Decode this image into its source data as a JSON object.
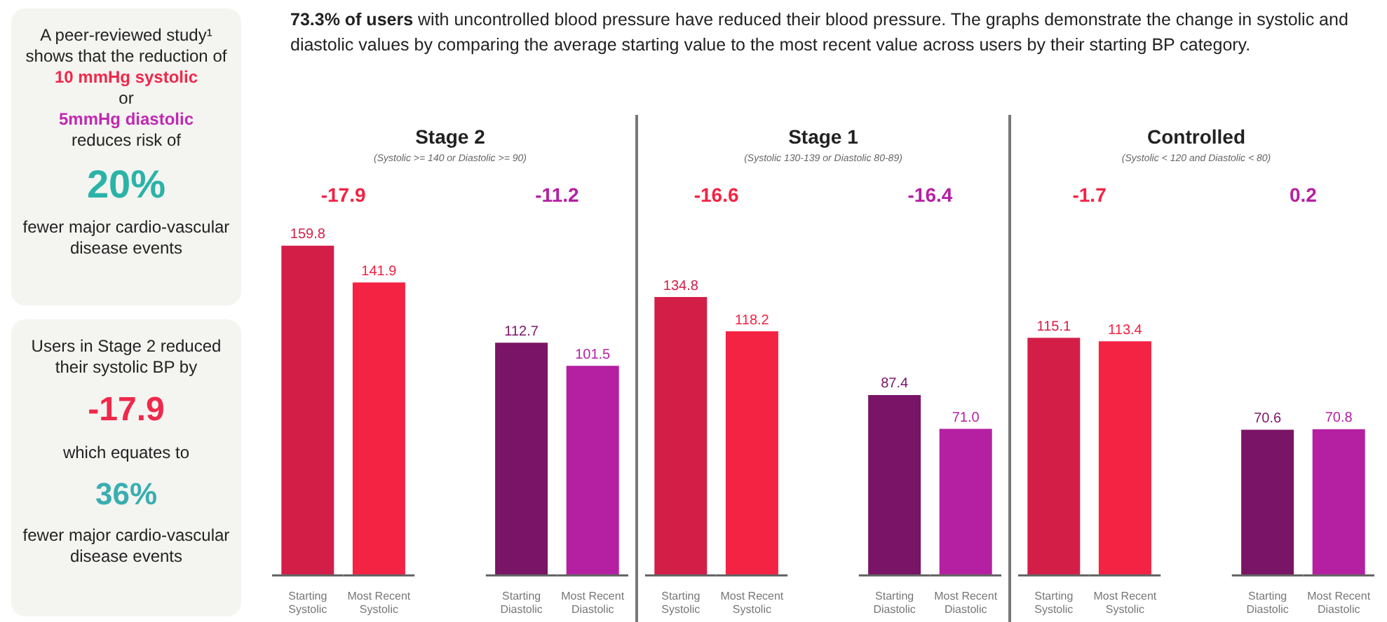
{
  "chart_data": [
    {
      "type": "other",
      "annotations": [
        "A peer-reviewed study¹ shows that the reduction of",
        "10 mmHg systolic",
        "or",
        "5mmHg diastolic",
        "reduces risk of",
        "20%",
        "fewer major cardio-vascular disease events"
      ]
    },
    {
      "type": "other",
      "annotations": [
        "Users in Stage 2 reduced their systolic BP by",
        "-17.9",
        "which equates to",
        "36%",
        "fewer major cardio-vascular disease events"
      ]
    },
    {
      "type": "other",
      "title": "73.3% of users",
      "subtitle": "with uncontrolled blood pressure have reduced their blood pressure.  The graphs demonstrate the change in systolic and diastolic values by comparing the average starting value to the most recent value across users by their starting BP category."
    },
    {
      "type": "bar",
      "title": "Stage 2",
      "subtitle": "(Systolic >= 140 or Diastolic >= 90)",
      "categories": [
        "Starting Systolic",
        "Most Recent Systolic",
        null,
        "Starting Diastolic",
        "Most Recent Diastolic"
      ],
      "values": [
        159.8,
        141.9,
        null,
        112.7,
        101.5
      ],
      "colors": [
        "#d31f48",
        "#f42243",
        "#ffffff",
        "#7a1466",
        "#b51fa2"
      ],
      "data_labels": true,
      "annotations": [
        "-17.9",
        "-11.2"
      ]
    },
    {
      "type": "bar",
      "title": "Stage 1",
      "subtitle": "(Systolic 130-139 or Diastolic 80-89)",
      "categories": [
        "Starting Systolic",
        "Most Recent Systolic",
        null,
        "Starting Diastolic",
        "Most Recent Diastolic"
      ],
      "values": [
        134.8,
        118.2,
        null,
        87.4,
        71.0
      ],
      "value_labels": [
        "134.8",
        "118.2",
        null,
        "87.4",
        "71.0"
      ],
      "colors": [
        "#d31f48",
        "#f42243",
        "#ffffff",
        "#7a1466",
        "#b51fa2"
      ],
      "annotations": [
        "-16.6",
        "-16.4"
      ]
    },
    {
      "type": "bar",
      "title": "Controlled",
      "subtitle": "(Systolic < 120 and Diastolic < 80)",
      "categories": [
        "Starting Systolic",
        "Most Recent Systolic",
        null,
        "Starting Diastolic",
        "Most Recent Diastolic"
      ],
      "values": [
        115.1,
        113.4,
        null,
        70.6,
        70.8
      ],
      "colors": [
        "#d31f48",
        "#f42243",
        "#ffffff",
        "#7a1466",
        "#b51fa2"
      ],
      "data_labels": true,
      "annotations": [
        "-1.7",
        "0.2"
      ]
    }
  ]
}
